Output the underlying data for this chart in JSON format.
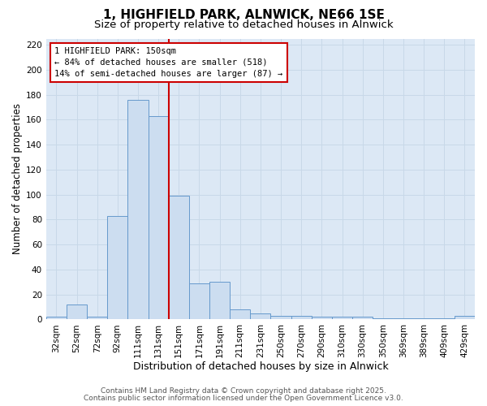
{
  "title": "1, HIGHFIELD PARK, ALNWICK, NE66 1SE",
  "subtitle": "Size of property relative to detached houses in Alnwick",
  "xlabel": "Distribution of detached houses by size in Alnwick",
  "ylabel": "Number of detached properties",
  "bar_labels": [
    "32sqm",
    "52sqm",
    "72sqm",
    "92sqm",
    "111sqm",
    "131sqm",
    "151sqm",
    "171sqm",
    "191sqm",
    "211sqm",
    "231sqm",
    "250sqm",
    "270sqm",
    "290sqm",
    "310sqm",
    "330sqm",
    "350sqm",
    "369sqm",
    "389sqm",
    "409sqm",
    "429sqm"
  ],
  "bar_values": [
    2,
    12,
    2,
    83,
    176,
    163,
    99,
    29,
    30,
    8,
    5,
    3,
    3,
    2,
    2,
    2,
    1,
    1,
    1,
    1,
    3
  ],
  "bar_color": "#ccddf0",
  "bar_edge_color": "#6699cc",
  "bar_edge_width": 0.7,
  "vline_x_index": 6,
  "vline_color": "#cc0000",
  "vline_linewidth": 1.5,
  "annotation_line1": "1 HIGHFIELD PARK: 150sqm",
  "annotation_line2": "← 84% of detached houses are smaller (518)",
  "annotation_line3": "14% of semi-detached houses are larger (87) →",
  "annotation_box_facecolor": "#ffffff",
  "annotation_box_edgecolor": "#cc0000",
  "ylim": [
    0,
    225
  ],
  "yticks": [
    0,
    20,
    40,
    60,
    80,
    100,
    120,
    140,
    160,
    180,
    200,
    220
  ],
  "grid_color": "#c8d8e8",
  "plot_background": "#dce8f5",
  "figure_background": "#ffffff",
  "footer_line1": "Contains HM Land Registry data © Crown copyright and database right 2025.",
  "footer_line2": "Contains public sector information licensed under the Open Government Licence v3.0.",
  "title_fontsize": 11,
  "subtitle_fontsize": 9.5,
  "xlabel_fontsize": 9,
  "ylabel_fontsize": 8.5,
  "tick_fontsize": 7.5,
  "annotation_fontsize": 7.5,
  "footer_fontsize": 6.5
}
